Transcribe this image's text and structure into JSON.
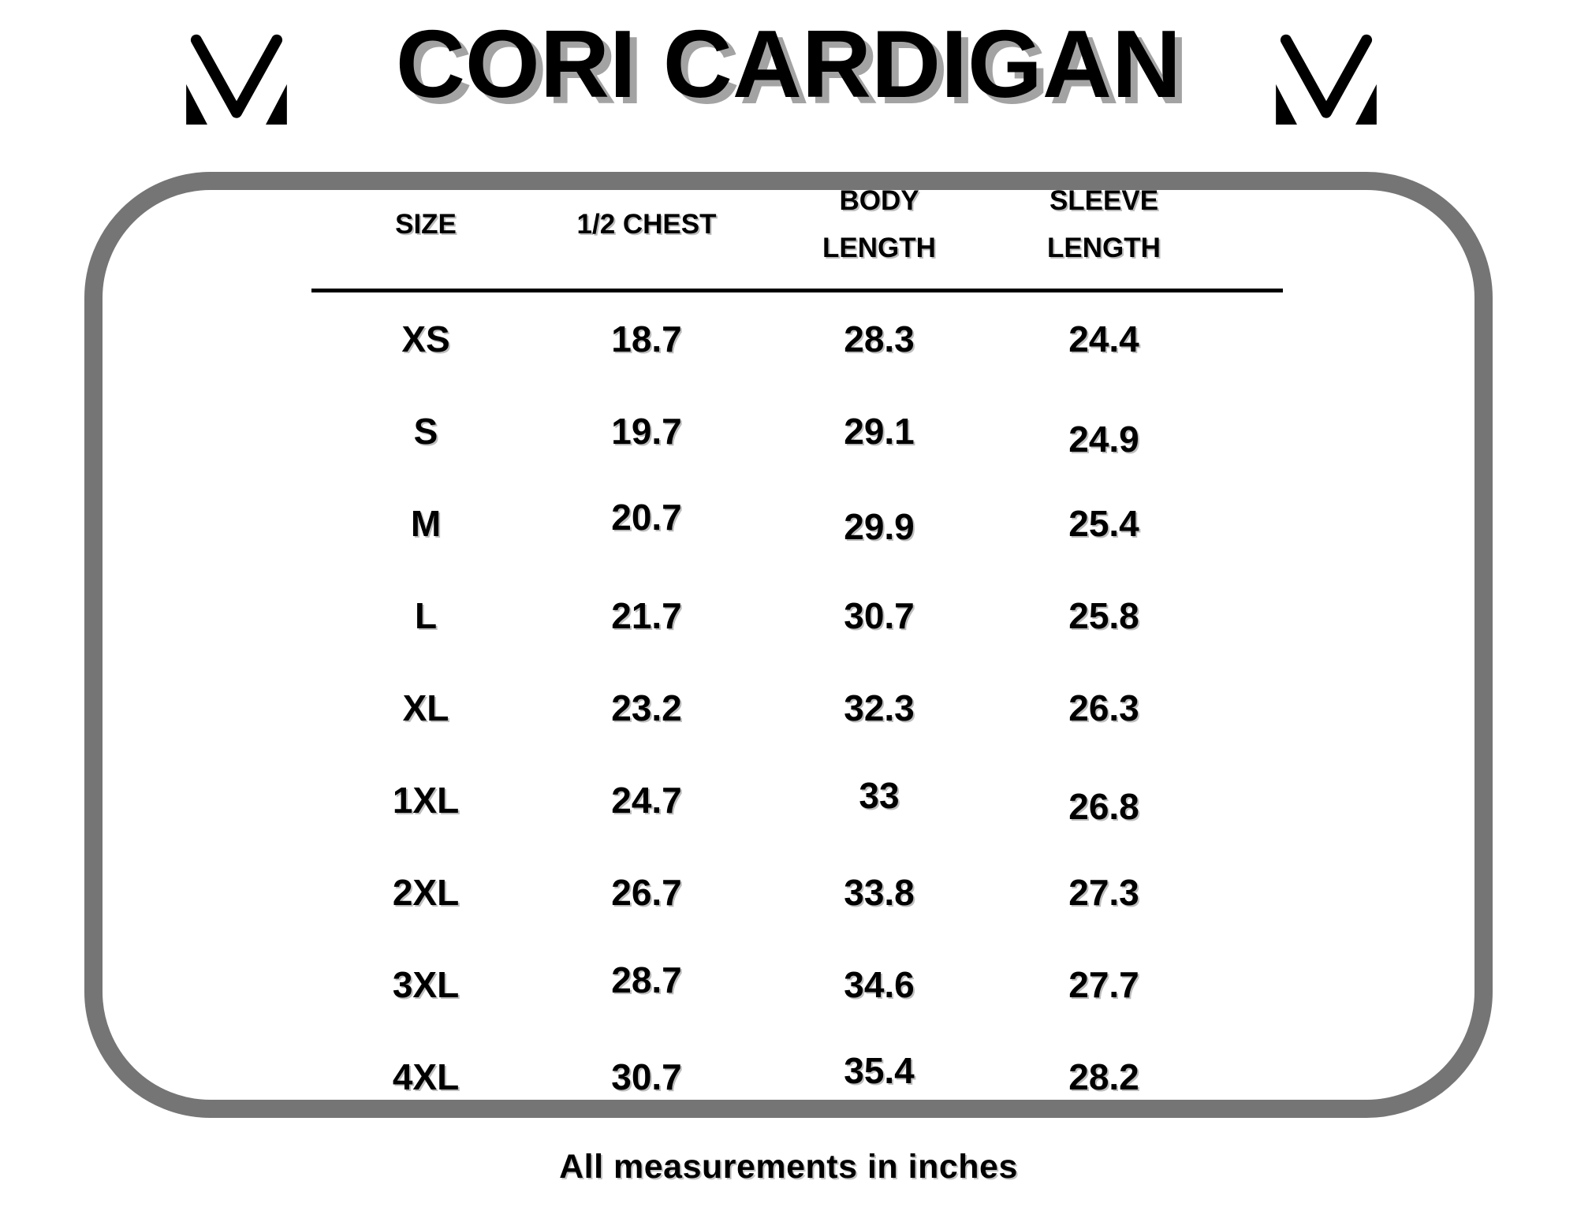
{
  "page": {
    "background_color": "#ffffff",
    "accent_border_color": "#757575",
    "text_color": "#000000",
    "shadow_color": "#a3a3a3"
  },
  "header": {
    "title": "CORI CARDIGAN",
    "left_logo_icon": "m-monogram-icon",
    "right_logo_icon": "m-monogram-icon"
  },
  "size_chart": {
    "columns": [
      "SIZE",
      "1/2 CHEST",
      "BODY\nLENGTH",
      "SLEEVE\nLENGTH"
    ],
    "rows": [
      {
        "size": "XS",
        "half_chest": "18.7",
        "body_length": "28.3",
        "sleeve_length": "24.4"
      },
      {
        "size": "S",
        "half_chest": "19.7",
        "body_length": "29.1",
        "sleeve_length": "24.9"
      },
      {
        "size": "M",
        "half_chest": "20.7",
        "body_length": "29.9",
        "sleeve_length": "25.4"
      },
      {
        "size": "L",
        "half_chest": "21.7",
        "body_length": "30.7",
        "sleeve_length": "25.8"
      },
      {
        "size": "XL",
        "half_chest": "23.2",
        "body_length": "32.3",
        "sleeve_length": "26.3"
      },
      {
        "size": "1XL",
        "half_chest": "24.7",
        "body_length": "33",
        "sleeve_length": "26.8"
      },
      {
        "size": "2XL",
        "half_chest": "26.7",
        "body_length": "33.8",
        "sleeve_length": "27.3"
      },
      {
        "size": "3XL",
        "half_chest": "28.7",
        "body_length": "34.6",
        "sleeve_length": "27.7"
      },
      {
        "size": "4XL",
        "half_chest": "30.7",
        "body_length": "35.4",
        "sleeve_length": "28.2"
      }
    ],
    "note": "All measurements in inches"
  },
  "chart_data": {
    "type": "table",
    "title": "CORI CARDIGAN",
    "columns": [
      "SIZE",
      "1/2 CHEST",
      "BODY LENGTH",
      "SLEEVE LENGTH"
    ],
    "rows": [
      [
        "XS",
        18.7,
        28.3,
        24.4
      ],
      [
        "S",
        19.7,
        29.1,
        24.9
      ],
      [
        "M",
        20.7,
        29.9,
        25.4
      ],
      [
        "L",
        21.7,
        30.7,
        25.8
      ],
      [
        "XL",
        23.2,
        32.3,
        26.3
      ],
      [
        "1XL",
        24.7,
        33,
        26.8
      ],
      [
        "2XL",
        26.7,
        33.8,
        27.3
      ],
      [
        "3XL",
        28.7,
        34.6,
        27.7
      ],
      [
        "4XL",
        30.7,
        35.4,
        28.2
      ]
    ],
    "note": "All measurements in inches",
    "units": "inches"
  }
}
